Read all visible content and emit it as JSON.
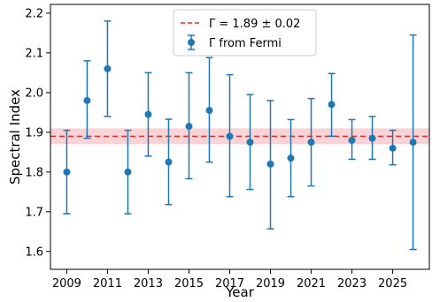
{
  "chart_data": {
    "type": "scatter",
    "xlabel": "Year",
    "ylabel": "Spectral Index",
    "xlim": [
      2008.2,
      2026.8
    ],
    "ylim": [
      1.555,
      2.222
    ],
    "xticks": [
      2009,
      2011,
      2013,
      2015,
      2017,
      2019,
      2021,
      2023,
      2025
    ],
    "yticks": [
      1.6,
      1.7,
      1.8,
      1.9,
      2.0,
      2.1,
      2.2
    ],
    "ytick_labels": [
      "1.6",
      "1.7",
      "1.8",
      "1.9",
      "2.0",
      "2.1",
      "2.2"
    ],
    "grid": false,
    "legend_position": "top-center",
    "series": [
      {
        "name": "Γ from Fermi",
        "color": "#1f77b4",
        "x": [
          2009,
          2010,
          2011,
          2012,
          2013,
          2014,
          2015,
          2016,
          2017,
          2018,
          2019,
          2020,
          2021,
          2022,
          2023,
          2024,
          2025,
          2026
        ],
        "y": [
          1.8,
          1.98,
          2.06,
          1.8,
          1.945,
          1.825,
          1.915,
          1.955,
          1.89,
          1.875,
          1.82,
          1.835,
          1.875,
          1.97,
          1.88,
          1.885,
          1.86,
          1.875
        ],
        "err_low": [
          1.695,
          1.885,
          1.94,
          1.695,
          1.84,
          1.718,
          1.783,
          1.825,
          1.738,
          1.756,
          1.657,
          1.738,
          1.765,
          1.89,
          1.832,
          1.832,
          1.818,
          1.605
        ],
        "err_high": [
          1.905,
          2.08,
          2.18,
          1.905,
          2.05,
          1.933,
          2.05,
          2.088,
          2.045,
          1.995,
          1.98,
          1.932,
          1.985,
          2.048,
          1.932,
          1.94,
          1.905,
          2.145
        ]
      }
    ],
    "mean_line": {
      "name": "Γ̄ = 1.89 ± 0.02",
      "value": 1.89,
      "band": [
        1.87,
        1.91
      ],
      "line_color": "#e03030",
      "band_color": "#f9d3d6"
    }
  }
}
